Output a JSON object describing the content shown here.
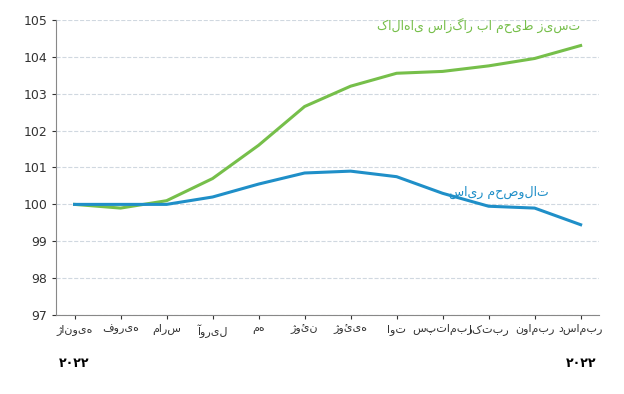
{
  "chart_data": {
    "type": "line",
    "categories": [
      "ژانویه",
      "فوریه",
      "مارس",
      "آوریل",
      "مه",
      "ژوئن",
      "ژوئیه",
      "اوت",
      "سپتامبر",
      "اکتبر",
      "نوامبر",
      "دسامبر"
    ],
    "series": [
      {
        "name": "کالاهای سازگار با محیط زیست",
        "color": "#76bf4a",
        "values": [
          100.0,
          99.9,
          100.1,
          100.7,
          101.6,
          102.65,
          103.2,
          103.55,
          103.6,
          103.75,
          103.95,
          104.3
        ]
      },
      {
        "name": "سایر محصولات",
        "color": "#1f8fc8",
        "values": [
          100.0,
          100.0,
          100.0,
          100.2,
          100.55,
          100.85,
          100.9,
          100.75,
          100.3,
          99.95,
          99.9,
          99.45
        ]
      }
    ],
    "annotations": [
      {
        "text": "۲۰۲۲",
        "category": "ژانویه"
      },
      {
        "text": "۲۰۲۲",
        "category": "دسامبر"
      }
    ],
    "ylim": [
      97,
      105
    ],
    "yticks": [
      97,
      98,
      99,
      100,
      101,
      102,
      103,
      104,
      105
    ],
    "grid": true
  }
}
